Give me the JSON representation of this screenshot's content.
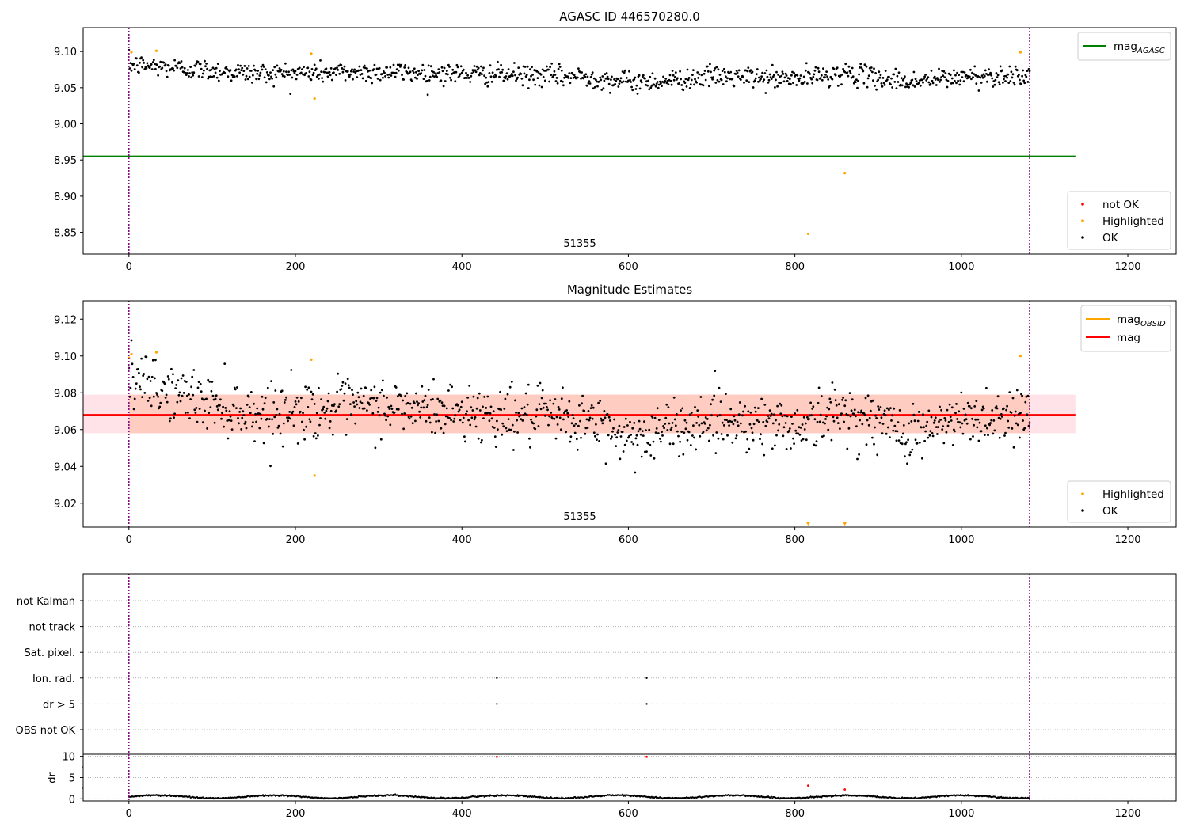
{
  "chart_data": [
    {
      "type": "scatter",
      "title": "AGASC ID 446570280.0",
      "annotation": "51355",
      "xlim": [
        -55,
        1258
      ],
      "ylim": [
        8.82,
        9.133
      ],
      "xticks": [
        0,
        200,
        400,
        600,
        800,
        1000,
        1200
      ],
      "yticks": [
        8.85,
        8.9,
        8.95,
        9.0,
        9.05,
        9.1
      ],
      "ytick_labels": [
        "8.85",
        "8.90",
        "8.95",
        "9.00",
        "9.05",
        "9.10"
      ],
      "vlines": [
        0,
        1082
      ],
      "vline_color": "#800080",
      "hlines": [
        {
          "name": "mag_AGASC",
          "label_main": "mag",
          "label_sub": "AGASC",
          "y": 8.955,
          "x_range": [
            -55,
            1137
          ],
          "color": "#008000"
        }
      ],
      "legend_lines": [
        {
          "label_main": "mag",
          "label_sub": "AGASC",
          "color": "#008000"
        }
      ],
      "legend_points": [
        {
          "label": "not OK",
          "color": "#ff0000"
        },
        {
          "label": "Highlighted",
          "color": "#ffa500"
        },
        {
          "label": "OK",
          "color": "#000000"
        }
      ],
      "ok_trend": [
        [
          0,
          9.082
        ],
        [
          150,
          9.07
        ],
        [
          300,
          9.072
        ],
        [
          450,
          9.068
        ],
        [
          550,
          9.065
        ],
        [
          600,
          9.058
        ],
        [
          650,
          9.06
        ],
        [
          700,
          9.066
        ],
        [
          800,
          9.062
        ],
        [
          860,
          9.07
        ],
        [
          940,
          9.058
        ],
        [
          1000,
          9.065
        ],
        [
          1082,
          9.068
        ]
      ],
      "ok_scatter_sd": 0.009,
      "highlighted": [
        [
          3,
          9.099
        ],
        [
          33,
          9.101
        ],
        [
          219,
          9.097
        ],
        [
          223,
          9.035
        ],
        [
          816,
          8.848
        ],
        [
          860,
          8.932
        ],
        [
          1071,
          9.099
        ]
      ],
      "not_ok": []
    },
    {
      "type": "scatter",
      "title": "Magnitude Estimates",
      "annotation": "51355",
      "xlim": [
        -55,
        1258
      ],
      "ylim": [
        9.007,
        9.13
      ],
      "xticks": [
        0,
        200,
        400,
        600,
        800,
        1000,
        1200
      ],
      "yticks": [
        9.02,
        9.04,
        9.06,
        9.08,
        9.1,
        9.12
      ],
      "ytick_labels": [
        "9.02",
        "9.04",
        "9.06",
        "9.08",
        "9.10",
        "9.12"
      ],
      "vlines": [
        0,
        1082
      ],
      "vline_color": "#800080",
      "bands": [
        {
          "y0": 9.058,
          "y1": 9.079,
          "x_range": [
            -55,
            1137
          ],
          "color": "#ffc0cb",
          "opacity": 0.45
        },
        {
          "y0": 9.058,
          "y1": 9.079,
          "x_range": [
            0,
            1082
          ],
          "color": "#ffa07a",
          "opacity": 0.35
        }
      ],
      "hlines": [
        {
          "name": "mag",
          "label_main": "mag",
          "label_sub": "",
          "y": 9.068,
          "x_range": [
            -55,
            1137
          ],
          "color": "#ff0000"
        }
      ],
      "legend_lines": [
        {
          "label_main": "mag",
          "label_sub": "OBSID",
          "color": "#ffa500"
        },
        {
          "label_main": "mag",
          "label_sub": "",
          "color": "#ff0000"
        }
      ],
      "legend_points": [
        {
          "label": "Highlighted",
          "color": "#ffa500"
        },
        {
          "label": "OK",
          "color": "#000000"
        }
      ],
      "ok_trend": [
        [
          0,
          9.086
        ],
        [
          150,
          9.069
        ],
        [
          300,
          9.073
        ],
        [
          450,
          9.068
        ],
        [
          550,
          9.065
        ],
        [
          600,
          9.056
        ],
        [
          650,
          9.06
        ],
        [
          700,
          9.066
        ],
        [
          800,
          9.062
        ],
        [
          860,
          9.07
        ],
        [
          940,
          9.058
        ],
        [
          1000,
          9.065
        ],
        [
          1082,
          9.07
        ]
      ],
      "ok_scatter_sd": 0.0095,
      "highlighted": [
        [
          0,
          9.099
        ],
        [
          3,
          9.101
        ],
        [
          33,
          9.102
        ],
        [
          219,
          9.098
        ],
        [
          223,
          9.035
        ],
        [
          1071,
          9.1
        ]
      ],
      "off_scale_markers": [
        816,
        860
      ],
      "not_ok": []
    },
    {
      "type": "scatter",
      "title": "",
      "xlim": [
        -55,
        1258
      ],
      "xticks": [
        0,
        200,
        400,
        600,
        800,
        1000,
        1200
      ],
      "vlines": [
        0,
        1082
      ],
      "vline_color": "#800080",
      "flag_categories": [
        "not Kalman",
        "not track",
        "Sat. pixel.",
        "Ion. rad.",
        "dr > 5",
        "OBS not OK"
      ],
      "flag_points": [
        {
          "category": "Ion. rad.",
          "x": 442
        },
        {
          "category": "Ion. rad.",
          "x": 622
        },
        {
          "category": "dr > 5",
          "x": 442
        },
        {
          "category": "dr > 5",
          "x": 622
        }
      ],
      "dr_ylabel": "dr",
      "dr_ylim": [
        -0.5,
        10.5
      ],
      "dr_yticks": [
        0,
        5,
        10
      ],
      "dr_ytick_labels": [
        "0",
        "5",
        "10"
      ],
      "dr_minor_ticks": [
        2.5,
        7.5
      ],
      "dr_trend_mean": 0.5,
      "dr_trend_amp": 0.35,
      "dr_not_ok": [
        [
          442,
          9.9
        ],
        [
          622,
          9.9
        ],
        [
          816,
          3.1
        ],
        [
          860,
          2.2
        ]
      ]
    }
  ]
}
